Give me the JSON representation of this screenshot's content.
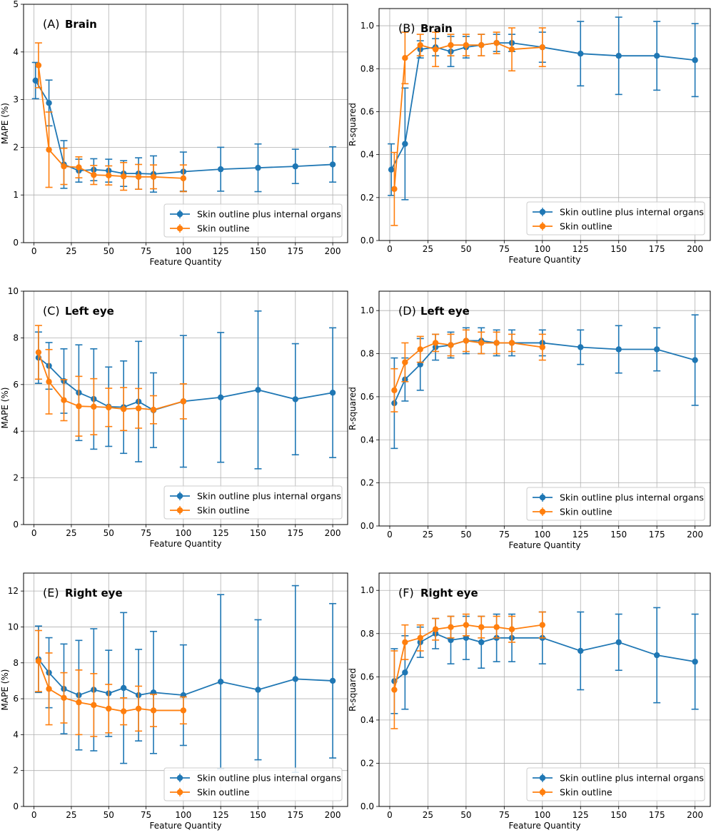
{
  "colors": {
    "internal": "#1f77b4",
    "skin": "#ff7f0e"
  },
  "chart_data": [
    {
      "type": "line",
      "panel_tag": "(A)",
      "title": "Brain",
      "xlabel": "Feature Quantity",
      "ylabel": "MAPE (%)",
      "xlim": [
        -7,
        210
      ],
      "ylim": [
        0,
        5
      ],
      "xticks": [
        "0",
        "25",
        "50",
        "75",
        "100",
        "125",
        "150",
        "175",
        "200"
      ],
      "yticks": [
        "0",
        "1",
        "2",
        "3",
        "4",
        "5"
      ],
      "grid": true,
      "legend_position": "lower-right",
      "series": [
        {
          "name": "Skin outline plus internal organs",
          "x": [
            1,
            10,
            20,
            30,
            40,
            50,
            60,
            70,
            80,
            100,
            125,
            150,
            175,
            200
          ],
          "y": [
            3.4,
            2.93,
            1.64,
            1.51,
            1.53,
            1.51,
            1.45,
            1.45,
            1.44,
            1.49,
            1.54,
            1.57,
            1.6,
            1.64
          ],
          "err": [
            0.38,
            0.48,
            0.5,
            0.24,
            0.23,
            0.24,
            0.27,
            0.33,
            0.38,
            0.41,
            0.46,
            0.5,
            0.36,
            0.37
          ]
        },
        {
          "name": "Skin outline",
          "x": [
            3,
            10,
            20,
            30,
            40,
            50,
            60,
            70,
            80,
            100
          ],
          "y": [
            3.72,
            1.95,
            1.6,
            1.58,
            1.42,
            1.41,
            1.39,
            1.38,
            1.38,
            1.35
          ],
          "err": [
            0.47,
            0.79,
            0.38,
            0.22,
            0.2,
            0.2,
            0.29,
            0.26,
            0.25,
            0.28
          ]
        }
      ]
    },
    {
      "type": "line",
      "panel_tag": "(B)",
      "title": "Brain",
      "xlabel": "Feature Quantity",
      "ylabel": "R-squared",
      "xlim": [
        -7,
        210
      ],
      "ylim": [
        0,
        1.08
      ],
      "xticks": [
        "0",
        "25",
        "50",
        "75",
        "100",
        "125",
        "150",
        "175",
        "200"
      ],
      "yticks": [
        "0.0",
        "0.2",
        "0.4",
        "0.6",
        "0.8",
        "1.0"
      ],
      "grid": true,
      "legend_position": "lower-right",
      "series": [
        {
          "name": "Skin outline plus internal organs",
          "x": [
            1,
            10,
            20,
            30,
            40,
            50,
            60,
            70,
            80,
            100,
            125,
            150,
            175,
            200
          ],
          "y": [
            0.33,
            0.45,
            0.89,
            0.9,
            0.88,
            0.9,
            0.91,
            0.92,
            0.92,
            0.9,
            0.87,
            0.86,
            0.86,
            0.84
          ],
          "err": [
            0.12,
            0.26,
            0.04,
            0.04,
            0.07,
            0.05,
            0.05,
            0.04,
            0.04,
            0.07,
            0.15,
            0.18,
            0.16,
            0.17
          ]
        },
        {
          "name": "Skin outline",
          "x": [
            3,
            10,
            20,
            30,
            40,
            50,
            60,
            70,
            80,
            100
          ],
          "y": [
            0.24,
            0.85,
            0.91,
            0.89,
            0.91,
            0.91,
            0.91,
            0.92,
            0.89,
            0.9
          ],
          "err": [
            0.17,
            0.12,
            0.05,
            0.08,
            0.05,
            0.05,
            0.05,
            0.05,
            0.1,
            0.09
          ]
        }
      ]
    },
    {
      "type": "line",
      "panel_tag": "(C)",
      "title": "Left eye",
      "xlabel": "Feature Quantity",
      "ylabel": "MAPE (%)",
      "xlim": [
        -7,
        210
      ],
      "ylim": [
        0,
        10
      ],
      "xticks": [
        "0",
        "25",
        "50",
        "75",
        "100",
        "125",
        "150",
        "175",
        "200"
      ],
      "yticks": [
        "0",
        "2",
        "4",
        "6",
        "8",
        "10"
      ],
      "grid": true,
      "legend_position": "lower-right",
      "series": [
        {
          "name": "Skin outline plus internal organs",
          "x": [
            3,
            10,
            20,
            30,
            40,
            50,
            60,
            70,
            80,
            100,
            125,
            150,
            175,
            200
          ],
          "y": [
            7.15,
            6.8,
            6.15,
            5.65,
            5.38,
            5.05,
            5.03,
            5.27,
            4.9,
            5.28,
            5.45,
            5.77,
            5.37,
            5.65
          ],
          "err": [
            1.1,
            1.0,
            1.38,
            2.05,
            2.15,
            1.7,
            1.98,
            2.58,
            1.6,
            2.82,
            2.78,
            3.38,
            2.38,
            2.78
          ]
        },
        {
          "name": "Skin outline",
          "x": [
            3,
            10,
            20,
            30,
            40,
            50,
            60,
            70,
            80,
            100
          ],
          "y": [
            7.38,
            6.12,
            5.33,
            5.07,
            5.05,
            5.02,
            4.95,
            4.98,
            4.92,
            5.28
          ],
          "err": [
            1.15,
            1.38,
            0.88,
            1.28,
            1.2,
            0.82,
            0.92,
            0.85,
            0.6,
            0.75
          ]
        }
      ]
    },
    {
      "type": "line",
      "panel_tag": "(D)",
      "title": "Left eye",
      "xlabel": "Feature Quantity",
      "ylabel": "R-squared",
      "xlim": [
        -7,
        210
      ],
      "ylim": [
        0,
        1.09
      ],
      "xticks": [
        "0",
        "25",
        "50",
        "75",
        "100",
        "125",
        "150",
        "175",
        "200"
      ],
      "yticks": [
        "0.0",
        "0.2",
        "0.4",
        "0.6",
        "0.8",
        "1.0"
      ],
      "grid": true,
      "legend_position": "lower-right",
      "series": [
        {
          "name": "Skin outline plus internal organs",
          "x": [
            3,
            10,
            20,
            30,
            40,
            50,
            60,
            70,
            80,
            100,
            125,
            150,
            175,
            200
          ],
          "y": [
            0.57,
            0.68,
            0.75,
            0.83,
            0.84,
            0.86,
            0.86,
            0.85,
            0.85,
            0.85,
            0.83,
            0.82,
            0.82,
            0.77
          ],
          "err": [
            0.21,
            0.1,
            0.12,
            0.06,
            0.06,
            0.06,
            0.06,
            0.06,
            0.06,
            0.06,
            0.08,
            0.11,
            0.1,
            0.21
          ]
        },
        {
          "name": "Skin outline",
          "x": [
            3,
            10,
            20,
            30,
            40,
            50,
            60,
            70,
            80,
            100
          ],
          "y": [
            0.63,
            0.76,
            0.82,
            0.85,
            0.84,
            0.86,
            0.85,
            0.85,
            0.85,
            0.83
          ],
          "err": [
            0.1,
            0.09,
            0.06,
            0.04,
            0.05,
            0.05,
            0.05,
            0.05,
            0.04,
            0.06
          ]
        }
      ]
    },
    {
      "type": "line",
      "panel_tag": "(E)",
      "title": "Right eye",
      "xlabel": "Feature Quantity",
      "ylabel": "MAPE (%)",
      "xlim": [
        -7,
        210
      ],
      "ylim": [
        0,
        13
      ],
      "xticks": [
        "0",
        "25",
        "50",
        "75",
        "100",
        "125",
        "150",
        "175",
        "200"
      ],
      "yticks": [
        "0",
        "2",
        "4",
        "6",
        "8",
        "10",
        "12"
      ],
      "grid": true,
      "legend_position": "lower-right",
      "series": [
        {
          "name": "Skin outline plus internal organs",
          "x": [
            3,
            10,
            20,
            30,
            40,
            50,
            60,
            70,
            80,
            100,
            125,
            150,
            175,
            200
          ],
          "y": [
            8.2,
            7.45,
            6.55,
            6.2,
            6.5,
            6.3,
            6.6,
            6.2,
            6.35,
            6.2,
            6.95,
            6.5,
            7.1,
            7.0
          ],
          "err": [
            1.85,
            1.95,
            2.5,
            3.05,
            3.4,
            2.4,
            4.2,
            2.55,
            3.4,
            2.8,
            4.85,
            3.9,
            5.2,
            4.3
          ]
        },
        {
          "name": "Skin outline",
          "x": [
            3,
            10,
            20,
            30,
            40,
            50,
            60,
            70,
            80,
            100
          ],
          "y": [
            8.1,
            6.55,
            6.05,
            5.8,
            5.65,
            5.45,
            5.3,
            5.45,
            5.35,
            5.35
          ],
          "err": [
            1.7,
            2.0,
            1.4,
            1.8,
            1.75,
            1.35,
            0.75,
            1.25,
            0.9,
            0.75
          ]
        }
      ]
    },
    {
      "type": "line",
      "panel_tag": "(F)",
      "title": "Right eye",
      "xlabel": "Feature Quantity",
      "ylabel": "R-squared",
      "xlim": [
        -7,
        210
      ],
      "ylim": [
        0,
        1.08
      ],
      "xticks": [
        "0",
        "25",
        "50",
        "75",
        "100",
        "125",
        "150",
        "175",
        "200"
      ],
      "yticks": [
        "0.0",
        "0.2",
        "0.4",
        "0.6",
        "0.8",
        "1.0"
      ],
      "grid": true,
      "legend_position": "lower-right",
      "series": [
        {
          "name": "Skin outline plus internal organs",
          "x": [
            3,
            10,
            20,
            30,
            40,
            50,
            60,
            70,
            80,
            100,
            125,
            150,
            175,
            200
          ],
          "y": [
            0.58,
            0.62,
            0.76,
            0.8,
            0.77,
            0.78,
            0.76,
            0.78,
            0.78,
            0.78,
            0.72,
            0.76,
            0.7,
            0.67
          ],
          "err": [
            0.15,
            0.17,
            0.07,
            0.07,
            0.11,
            0.1,
            0.12,
            0.11,
            0.11,
            0.12,
            0.18,
            0.13,
            0.22,
            0.22
          ]
        },
        {
          "name": "Skin outline",
          "x": [
            3,
            10,
            20,
            30,
            40,
            50,
            60,
            70,
            80,
            100
          ],
          "y": [
            0.54,
            0.76,
            0.78,
            0.82,
            0.83,
            0.84,
            0.83,
            0.83,
            0.82,
            0.84
          ],
          "err": [
            0.18,
            0.08,
            0.06,
            0.05,
            0.05,
            0.05,
            0.05,
            0.05,
            0.06,
            0.06
          ]
        }
      ]
    }
  ]
}
